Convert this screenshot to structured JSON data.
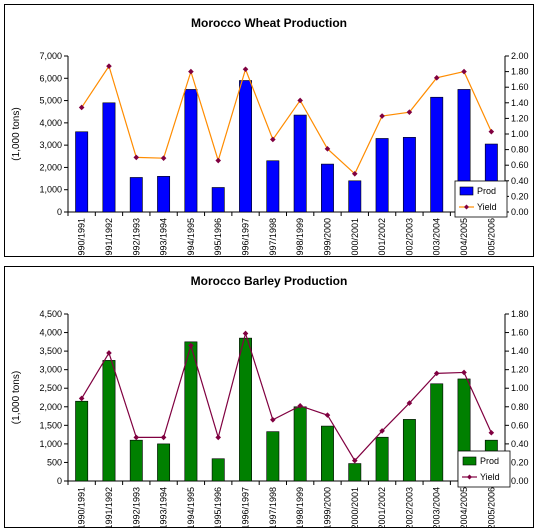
{
  "chart_data": [
    {
      "type": "bar",
      "title": "Morocco Wheat Production",
      "ylabel": "(1,000 tons)",
      "ylim": [
        0,
        7000
      ],
      "y2lim": [
        0,
        2.0
      ],
      "yticks": [
        "0",
        "1,000",
        "2,000",
        "3,000",
        "4,000",
        "5,000",
        "6,000",
        "7,000"
      ],
      "y2ticks": [
        "0.00",
        "0.20",
        "0.40",
        "0.60",
        "0.80",
        "1.00",
        "1.20",
        "1.40",
        "1.60",
        "1.80",
        "2.00"
      ],
      "categories": [
        "1990/1991",
        "1991/1992",
        "1992/1993",
        "1993/1994",
        "1994/1995",
        "1995/1996",
        "1996/1997",
        "1997/1998",
        "1998/1999",
        "1999/2000",
        "2000/2001",
        "2001/2002",
        "2002/2003",
        "2003/2004",
        "2004/2005",
        "2005/2006"
      ],
      "series": [
        {
          "name": "Prod",
          "kind": "bar",
          "axis": "left",
          "color": "#0000ff",
          "values": [
            3600,
            4900,
            1550,
            1600,
            5500,
            1100,
            5900,
            2300,
            4350,
            2150,
            1400,
            3300,
            3350,
            5150,
            5500,
            3050
          ]
        },
        {
          "name": "Yield",
          "kind": "line",
          "axis": "right",
          "color": "#ff8c00",
          "marker_color": "#800040",
          "values": [
            1.34,
            1.87,
            0.7,
            0.69,
            1.8,
            0.66,
            1.83,
            0.93,
            1.43,
            0.81,
            0.49,
            1.23,
            1.28,
            1.72,
            1.8,
            1.03
          ]
        }
      ],
      "legend_position": "bottom-right",
      "grid": false
    },
    {
      "type": "bar",
      "title": "Morocco Barley Production",
      "ylabel": "(1,000 tons)",
      "ylim": [
        0,
        4500
      ],
      "y2lim": [
        0,
        1.8
      ],
      "yticks": [
        "0",
        "500",
        "1,000",
        "1,500",
        "2,000",
        "2,500",
        "3,000",
        "3,500",
        "4,000",
        "4,500"
      ],
      "y2ticks": [
        "0.00",
        "0.20",
        "0.40",
        "0.60",
        "0.80",
        "1.00",
        "1.20",
        "1.40",
        "1.60",
        "1.80"
      ],
      "categories": [
        "1990/1991",
        "1991/1992",
        "1992/1993",
        "1993/1994",
        "1994/1995",
        "1995/1996",
        "1996/1997",
        "1997/1998",
        "1998/1999",
        "1999/2000",
        "2000/2001",
        "2001/2002",
        "2002/2003",
        "2003/2004",
        "2004/2005",
        "2005/2006"
      ],
      "series": [
        {
          "name": "Prod",
          "kind": "bar",
          "axis": "left",
          "color": "#008000",
          "values": [
            2150,
            3250,
            1100,
            1000,
            3750,
            600,
            3850,
            1330,
            2000,
            1480,
            470,
            1180,
            1660,
            2620,
            2750,
            1100
          ]
        },
        {
          "name": "Yield",
          "kind": "line",
          "axis": "right",
          "color": "#800040",
          "marker_color": "#800040",
          "values": [
            0.89,
            1.38,
            0.47,
            0.47,
            1.46,
            0.47,
            1.59,
            0.66,
            0.81,
            0.71,
            0.22,
            0.54,
            0.84,
            1.16,
            1.17,
            0.52
          ]
        }
      ],
      "legend_position": "bottom-right",
      "grid": false
    }
  ]
}
